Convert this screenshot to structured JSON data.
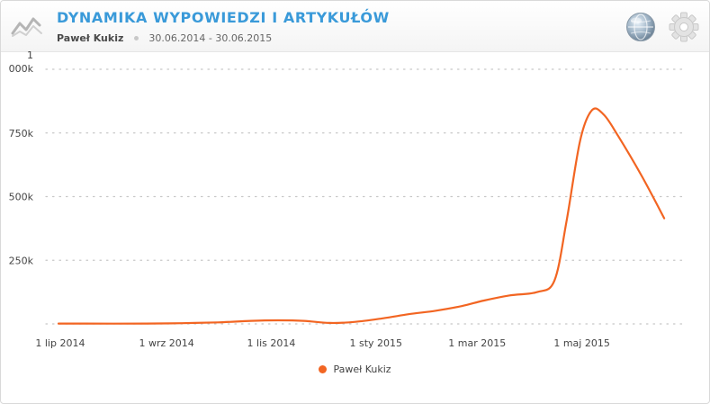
{
  "header": {
    "title": "DYNAMIKA WYPOWIEDZI I ARTYKUŁÓW",
    "author": "Paweł Kukiz",
    "date_range": "30.06.2014 - 30.06.2015"
  },
  "icons": {
    "logo": "trend-chart-icon",
    "globe": "globe-icon",
    "settings": "gear-icon"
  },
  "colors": {
    "series": "#f26522",
    "title": "#3a9ad9"
  },
  "chart_data": {
    "type": "line",
    "title": "DYNAMIKA WYPOWIEDZI I ARTYKUŁÓW",
    "xlabel": "",
    "ylabel": "",
    "y_ticks": [
      {
        "value": 250000,
        "label": "250k"
      },
      {
        "value": 500000,
        "label": "500k"
      },
      {
        "value": 750000,
        "label": "750k"
      },
      {
        "value": 1000000,
        "label_top": "1",
        "label_bottom": "000k"
      }
    ],
    "ylim": [
      0,
      1000000
    ],
    "x_range": [
      "2014-06-30",
      "2015-06-30"
    ],
    "x_ticks": [
      {
        "date": "2014-07-01",
        "label": "1 lip 2014"
      },
      {
        "date": "2014-09-01",
        "label": "1 wrz 2014"
      },
      {
        "date": "2014-11-01",
        "label": "1 lis 2014"
      },
      {
        "date": "2015-01-01",
        "label": "1 sty 2015"
      },
      {
        "date": "2015-03-01",
        "label": "1 mar 2015"
      },
      {
        "date": "2015-05-01",
        "label": "1 maj 2015"
      }
    ],
    "grid": true,
    "legend_position": "bottom-center",
    "series": [
      {
        "name": "Paweł Kukiz",
        "color": "#f26522",
        "points": [
          [
            "2014-06-30",
            1500
          ],
          [
            "2014-07-15",
            1500
          ],
          [
            "2014-08-01",
            1200
          ],
          [
            "2014-08-20",
            1500
          ],
          [
            "2014-09-10",
            3000
          ],
          [
            "2014-10-01",
            6000
          ],
          [
            "2014-10-20",
            12000
          ],
          [
            "2014-11-05",
            14000
          ],
          [
            "2014-11-20",
            12000
          ],
          [
            "2014-12-05",
            4000
          ],
          [
            "2014-12-20",
            8000
          ],
          [
            "2015-01-05",
            22000
          ],
          [
            "2015-01-20",
            38000
          ],
          [
            "2015-02-05",
            52000
          ],
          [
            "2015-02-20",
            70000
          ],
          [
            "2015-03-05",
            92000
          ],
          [
            "2015-03-20",
            112000
          ],
          [
            "2015-04-05",
            125000
          ],
          [
            "2015-04-15",
            170000
          ],
          [
            "2015-04-22",
            400000
          ],
          [
            "2015-04-30",
            720000
          ],
          [
            "2015-05-07",
            840000
          ],
          [
            "2015-05-14",
            820000
          ],
          [
            "2015-05-22",
            740000
          ],
          [
            "2015-06-05",
            580000
          ],
          [
            "2015-06-18",
            415000
          ]
        ]
      }
    ]
  }
}
